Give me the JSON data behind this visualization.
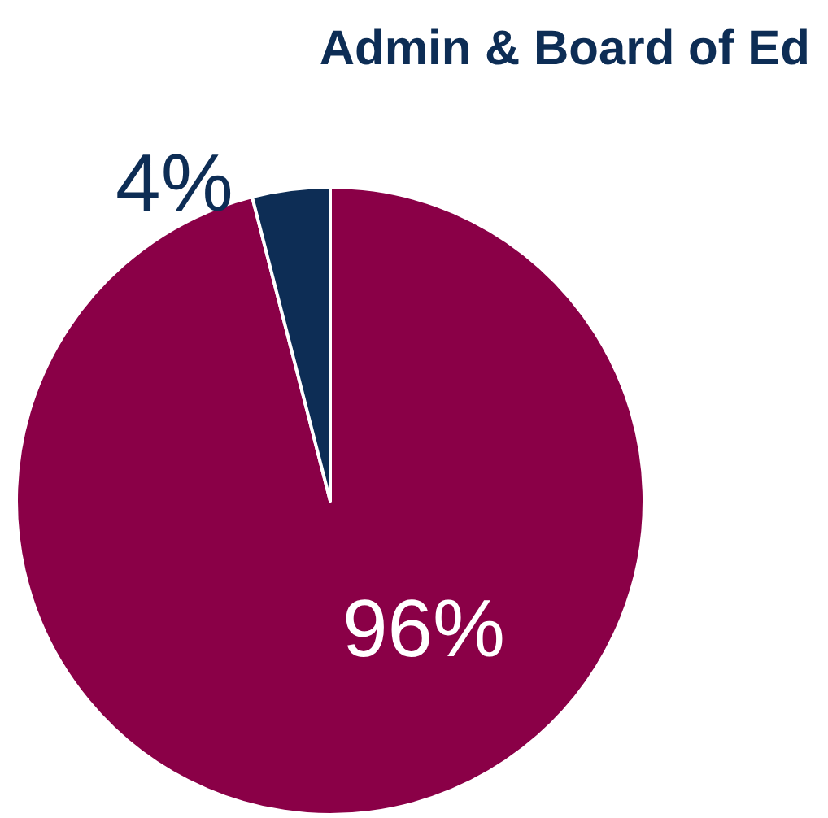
{
  "chart_data": {
    "type": "pie",
    "title": "Admin & Board of Ed",
    "categories": [
      null,
      null
    ],
    "values": [
      96,
      4
    ],
    "colors": [
      "#8a0047",
      "#0d2d55"
    ],
    "value_labels": [
      "96%",
      "4%"
    ]
  }
}
